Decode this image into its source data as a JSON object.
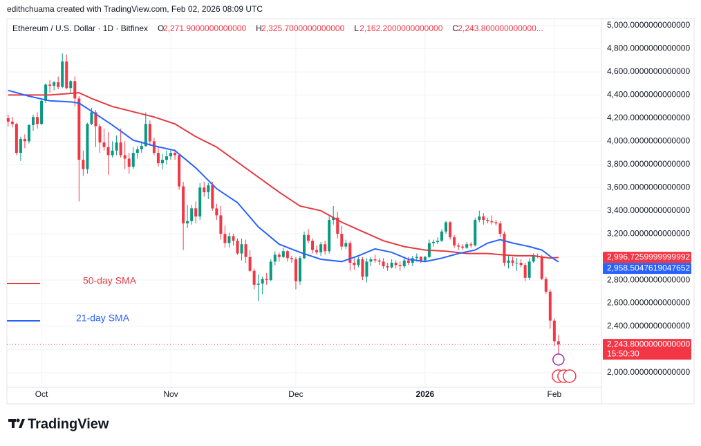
{
  "attribution": "edithchuama created with TradingView.com, Feb 02, 2026 08:09 UTC",
  "logo": "TradingView",
  "chart_data": {
    "type": "candlestick",
    "title": "Ethereum / U.S. Dollar · 1D · Bitfinex",
    "ohlc_legend": [
      {
        "key": "O",
        "text": "2,271.9000000000000"
      },
      {
        "key": "H",
        "text": "2,325.7000000000000"
      },
      {
        "key": "L",
        "text": "2,162.2000000000000"
      },
      {
        "key": "C",
        "text": "2,243.800000000000..."
      }
    ],
    "up_color": "#089981",
    "down_color": "#f23645",
    "open": [
      4200,
      4170,
      4150,
      3900,
      4020,
      4000,
      4140,
      4210,
      4150,
      4350,
      4490,
      4480,
      4510,
      4470,
      4690,
      4460,
      4520,
      4370,
      3840,
      3760,
      4150,
      4250,
      4130,
      3990,
      3950,
      3880,
      3920,
      3990,
      3880,
      3850,
      3780,
      3900,
      3930,
      3960,
      4150,
      4000,
      3900,
      3810,
      3840,
      3870,
      3900,
      3880,
      3610,
      3290,
      3310,
      3420,
      3350,
      3600,
      3560,
      3620,
      3420,
      3360,
      3200,
      3120,
      3180,
      3140,
      3030,
      3110,
      3000,
      2880,
      2760,
      2770,
      2810,
      2800,
      2960,
      3020,
      3000,
      3050,
      2990,
      2980,
      2790,
      2990,
      3190,
      3140,
      3060,
      3040,
      3110,
      3050,
      3320,
      3340,
      3200,
      3090,
      3120,
      2950,
      2930,
      2980,
      2830,
      2960,
      2980,
      2970,
      2960,
      2920,
      2910,
      2950,
      2930,
      2920,
      2970,
      2950,
      2990,
      3000,
      2970,
      3000,
      3120,
      3130,
      3140,
      3220,
      3300,
      3170,
      3100,
      3090,
      3080,
      3110,
      3100,
      3320,
      3350,
      3320,
      3310,
      3300,
      3290,
      3200,
      2950,
      2970,
      2950,
      2950,
      2930,
      2820,
      2960,
      3010,
      3000,
      2810,
      2700,
      2450,
      2271.9
    ],
    "high": [
      4230,
      4210,
      4160,
      4040,
      4060,
      4150,
      4230,
      4250,
      4360,
      4500,
      4530,
      4520,
      4560,
      4760,
      4750,
      4530,
      4560,
      4390,
      3920,
      4160,
      4290,
      4270,
      4150,
      4110,
      4080,
      4000,
      4050,
      4110,
      4000,
      3900,
      3950,
      3960,
      4000,
      4250,
      4180,
      4030,
      3960,
      3890,
      3920,
      3930,
      3930,
      3890,
      3650,
      3450,
      3450,
      3480,
      3640,
      3650,
      3640,
      3650,
      3460,
      3440,
      3270,
      3210,
      3200,
      3160,
      3160,
      3150,
      3060,
      2900,
      2850,
      2830,
      2860,
      2980,
      3050,
      3040,
      3080,
      3060,
      3010,
      3000,
      3010,
      3220,
      3240,
      3160,
      3100,
      3130,
      3140,
      3350,
      3440,
      3390,
      3270,
      3150,
      3140,
      2990,
      3000,
      3000,
      2990,
      3000,
      3020,
      2990,
      2990,
      2950,
      2980,
      2970,
      2960,
      2990,
      3000,
      3010,
      3030,
      3010,
      3010,
      3150,
      3150,
      3170,
      3240,
      3310,
      3310,
      3190,
      3120,
      3110,
      3130,
      3130,
      3340,
      3400,
      3380,
      3340,
      3360,
      3320,
      3310,
      3220,
      3020,
      3000,
      2990,
      2980,
      2950,
      2990,
      3030,
      3030,
      3020,
      2830,
      2720,
      2470,
      2325.7
    ],
    "low": [
      4130,
      4120,
      3880,
      3830,
      3940,
      3980,
      4090,
      4110,
      4140,
      4330,
      4420,
      4440,
      4450,
      4460,
      4450,
      4410,
      4300,
      3480,
      3700,
      3720,
      4140,
      3950,
      3900,
      3920,
      3710,
      3860,
      3880,
      3860,
      3760,
      3720,
      3760,
      3850,
      3900,
      3950,
      3960,
      3880,
      3780,
      3760,
      3800,
      3840,
      3840,
      3580,
      3060,
      3250,
      3280,
      3290,
      3320,
      3520,
      3500,
      3400,
      3320,
      3150,
      3080,
      3080,
      3100,
      3020,
      2970,
      2950,
      2870,
      2720,
      2620,
      2680,
      2760,
      2790,
      2930,
      2960,
      2990,
      2960,
      2950,
      2720,
      2760,
      2980,
      3120,
      3030,
      3020,
      3010,
      3020,
      3030,
      3280,
      3160,
      3060,
      3070,
      2880,
      2890,
      2910,
      2800,
      2780,
      2920,
      2950,
      2930,
      2900,
      2880,
      2900,
      2900,
      2880,
      2900,
      2930,
      2920,
      2960,
      2950,
      2960,
      2990,
      3090,
      3110,
      3130,
      3200,
      3150,
      3080,
      3060,
      3060,
      3070,
      3080,
      3090,
      3300,
      3280,
      3290,
      3280,
      3270,
      3170,
      2920,
      2900,
      2920,
      2880,
      2910,
      2790,
      2800,
      2950,
      2990,
      2800,
      2680,
      2380,
      2230,
      2162.2
    ],
    "close": [
      4170,
      4150,
      3900,
      4020,
      4000,
      4140,
      4210,
      4150,
      4350,
      4490,
      4480,
      4510,
      4470,
      4690,
      4460,
      4520,
      4370,
      3840,
      3760,
      4150,
      4250,
      4130,
      3990,
      3950,
      3880,
      3920,
      3990,
      3880,
      3850,
      3780,
      3900,
      3930,
      3960,
      4150,
      4000,
      3900,
      3810,
      3840,
      3870,
      3900,
      3880,
      3610,
      3290,
      3310,
      3420,
      3350,
      3600,
      3560,
      3620,
      3420,
      3360,
      3200,
      3120,
      3180,
      3140,
      3030,
      3110,
      3000,
      2880,
      2760,
      2770,
      2810,
      2800,
      2960,
      3020,
      3000,
      3050,
      2990,
      2980,
      2790,
      2990,
      3190,
      3140,
      3060,
      3040,
      3110,
      3050,
      3320,
      3340,
      3200,
      3090,
      3120,
      2950,
      2930,
      2980,
      2830,
      2960,
      2980,
      2970,
      2960,
      2920,
      2910,
      2950,
      2930,
      2920,
      2970,
      2950,
      2990,
      3000,
      2970,
      3000,
      3120,
      3130,
      3140,
      3220,
      3300,
      3170,
      3100,
      3090,
      3080,
      3110,
      3100,
      3320,
      3350,
      3320,
      3310,
      3300,
      3290,
      3200,
      2950,
      2970,
      2950,
      2950,
      2930,
      2820,
      2960,
      3010,
      3000,
      2810,
      2700,
      2450,
      2272,
      2243.8
    ],
    "series": [
      {
        "name": "50-day SMA",
        "color": "#e23b40",
        "x": [
          0,
          10,
          17,
          20,
          25,
          35,
          40,
          45,
          50,
          55,
          60,
          65,
          70,
          75,
          80,
          85,
          90,
          95,
          100,
          105,
          110,
          115,
          118,
          122,
          126,
          130,
          132
        ],
        "values": [
          4400,
          4400,
          4420,
          4370,
          4300,
          4210,
          4150,
          4040,
          3950,
          3820,
          3690,
          3560,
          3440,
          3400,
          3300,
          3220,
          3140,
          3090,
          3060,
          3050,
          3030,
          3030,
          3020,
          3010,
          3010,
          2990,
          2996.726
        ]
      },
      {
        "name": "21-day SMA",
        "color": "#2962ff",
        "x": [
          0,
          5,
          10,
          15,
          17,
          20,
          25,
          30,
          35,
          40,
          45,
          50,
          55,
          60,
          65,
          70,
          75,
          80,
          84,
          88,
          92,
          96,
          100,
          104,
          108,
          112,
          115,
          118,
          121,
          125,
          128,
          131,
          132
        ],
        "values": [
          4440,
          4390,
          4350,
          4340,
          4330,
          4260,
          4140,
          4010,
          3960,
          3920,
          3770,
          3590,
          3470,
          3260,
          3110,
          3040,
          2980,
          2960,
          3010,
          3070,
          3040,
          2980,
          2960,
          2990,
          3030,
          3060,
          3120,
          3150,
          3120,
          3090,
          3060,
          2980,
          2958.504761904765
        ]
      }
    ],
    "price_labels": [
      {
        "value": 2996.725999999999,
        "label": "2,996.7259999999992",
        "color": "#f23645"
      },
      {
        "value": 2958.504761904765,
        "label": "2,958.5047619047652",
        "color": "#2962ff"
      },
      {
        "value": 2243.8,
        "label": "2,243.8000000000000",
        "color": "#f23645"
      }
    ],
    "countdown": "15:50:30",
    "xlim": [
      -0.3,
      142.3
    ],
    "ylim": [
      1874,
      5042
    ],
    "xticks": [
      {
        "value": 8,
        "label": "Oct"
      },
      {
        "value": 39,
        "label": "Nov"
      },
      {
        "value": 69,
        "label": "Dec"
      },
      {
        "value": 100,
        "label": "2026"
      },
      {
        "value": 131,
        "label": "Feb"
      }
    ],
    "yticks": [
      {
        "value": 2000,
        "label": "2,000.0000000000000"
      },
      {
        "value": 2200,
        "label": "2,200.0000000000000"
      },
      {
        "value": 2400,
        "label": "2,400.0000000000000"
      },
      {
        "value": 2600,
        "label": "2,600.0000000000000"
      },
      {
        "value": 2800,
        "label": "2,800.0000000000000"
      },
      {
        "value": 3000,
        "label": "3,000.0000000000000"
      },
      {
        "value": 3200,
        "label": "3,200.0000000000000"
      },
      {
        "value": 3400,
        "label": "3,400.0000000000000"
      },
      {
        "value": 3600,
        "label": "3,600.0000000000000"
      },
      {
        "value": 3800,
        "label": "3,800.0000000000000"
      },
      {
        "value": 4000,
        "label": "4,000.0000000000000"
      },
      {
        "value": 4200,
        "label": "4,200.0000000000000"
      },
      {
        "value": 4400,
        "label": "4,400.0000000000000"
      },
      {
        "value": 4600,
        "label": "4,600.0000000000000"
      },
      {
        "value": 4800,
        "label": "4,800.0000000000000"
      },
      {
        "value": 5000,
        "label": "5,000.0000000000000"
      }
    ],
    "grid": true
  }
}
